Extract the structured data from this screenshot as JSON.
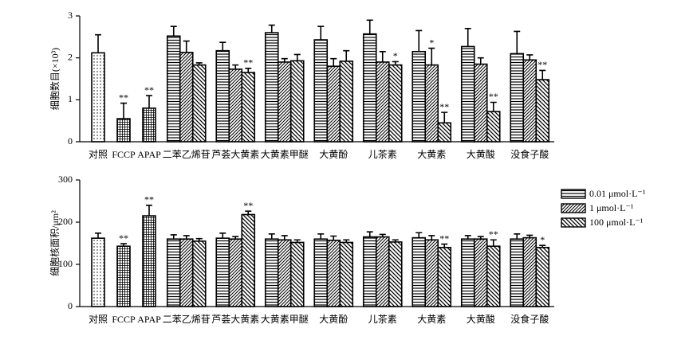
{
  "chart_data": [
    {
      "type": "bar",
      "ylabel": "细胞数目(×10³)",
      "categories": [
        "对照",
        "FCCP",
        "APAP",
        "二苯乙烯苷",
        "芦荟大黄素",
        "大黄素甲醚",
        "大黄酚",
        "儿茶素",
        "大黄素",
        "大黄酸",
        "没食子酸"
      ],
      "single_values": [
        2.12,
        0.55,
        0.8,
        null,
        null,
        null,
        null,
        null,
        null,
        null,
        null
      ],
      "single_errors": [
        0.43,
        0.37,
        0.3,
        null,
        null,
        null,
        null,
        null,
        null,
        null,
        null
      ],
      "single_annotations": [
        null,
        "**",
        "**",
        null,
        null,
        null,
        null,
        null,
        null,
        null,
        null
      ],
      "single_patterns": [
        "dots",
        "grid",
        "grid"
      ],
      "series": [
        {
          "name": "0.01 μmol·L⁻¹",
          "pattern": "hlines",
          "values": [
            null,
            null,
            null,
            2.52,
            2.17,
            2.6,
            2.43,
            2.57,
            2.15,
            2.27,
            2.1
          ],
          "errors": [
            null,
            null,
            null,
            0.23,
            0.2,
            0.18,
            0.32,
            0.33,
            0.5,
            0.43,
            0.53
          ],
          "annotations": [
            null,
            null,
            null,
            null,
            null,
            null,
            null,
            null,
            null,
            null,
            null
          ]
        },
        {
          "name": "1 μmol·L⁻¹",
          "pattern": "fdiag",
          "values": [
            null,
            null,
            null,
            2.13,
            1.73,
            1.9,
            1.8,
            1.9,
            1.83,
            1.85,
            1.95
          ],
          "errors": [
            null,
            null,
            null,
            0.27,
            0.1,
            0.08,
            0.18,
            0.25,
            0.4,
            0.15,
            0.12
          ],
          "annotations": [
            null,
            null,
            null,
            null,
            null,
            null,
            null,
            null,
            "*",
            null,
            null
          ]
        },
        {
          "name": "100 μmol·L⁻¹",
          "pattern": "bdiag",
          "values": [
            null,
            null,
            null,
            1.83,
            1.65,
            1.93,
            1.92,
            1.83,
            0.45,
            0.72,
            1.48
          ],
          "errors": [
            null,
            null,
            null,
            0.05,
            0.1,
            0.15,
            0.25,
            0.08,
            0.25,
            0.22,
            0.22
          ],
          "annotations": [
            null,
            null,
            null,
            null,
            "**",
            null,
            null,
            "*",
            "**",
            "**",
            "**"
          ]
        }
      ],
      "ylim": [
        0,
        3
      ],
      "yticks": [
        0,
        1,
        2,
        3
      ]
    },
    {
      "type": "bar",
      "ylabel": "细胞核面积/μm²",
      "categories": [
        "对照",
        "FCCP",
        "APAP",
        "二苯乙烯苷",
        "芦荟大黄素",
        "大黄素甲醚",
        "大黄酚",
        "儿茶素",
        "大黄素",
        "大黄酸",
        "没食子酸"
      ],
      "single_values": [
        162,
        143,
        215,
        null,
        null,
        null,
        null,
        null,
        null,
        null,
        null
      ],
      "single_errors": [
        12,
        6,
        25,
        null,
        null,
        null,
        null,
        null,
        null,
        null,
        null
      ],
      "single_annotations": [
        null,
        "**",
        "**",
        null,
        null,
        null,
        null,
        null,
        null,
        null,
        null
      ],
      "single_patterns": [
        "dots",
        "grid",
        "grid"
      ],
      "series": [
        {
          "name": "0.01 μmol·L⁻¹",
          "pattern": "hlines",
          "values": [
            null,
            null,
            null,
            160,
            162,
            160,
            160,
            165,
            163,
            160,
            160
          ],
          "errors": [
            null,
            null,
            null,
            10,
            12,
            12,
            12,
            12,
            12,
            8,
            12
          ],
          "annotations": [
            null,
            null,
            null,
            null,
            null,
            null,
            null,
            null,
            null,
            null,
            null
          ]
        },
        {
          "name": "1 μmol·L⁻¹",
          "pattern": "fdiag",
          "values": [
            null,
            null,
            null,
            160,
            160,
            158,
            157,
            165,
            158,
            160,
            163
          ],
          "errors": [
            null,
            null,
            null,
            8,
            6,
            10,
            10,
            6,
            10,
            6,
            6
          ],
          "annotations": [
            null,
            null,
            null,
            null,
            null,
            null,
            null,
            null,
            null,
            null,
            null
          ]
        },
        {
          "name": "100 μmol·L⁻¹",
          "pattern": "bdiag",
          "values": [
            null,
            null,
            null,
            155,
            218,
            152,
            152,
            153,
            140,
            143,
            140
          ],
          "errors": [
            null,
            null,
            null,
            6,
            8,
            6,
            6,
            5,
            8,
            15,
            5
          ],
          "annotations": [
            null,
            null,
            null,
            null,
            "**",
            null,
            null,
            null,
            "**",
            "**",
            "*"
          ]
        }
      ],
      "ylim": [
        0,
        300
      ],
      "yticks": [
        0,
        100,
        200,
        300
      ],
      "legend": "right"
    }
  ]
}
